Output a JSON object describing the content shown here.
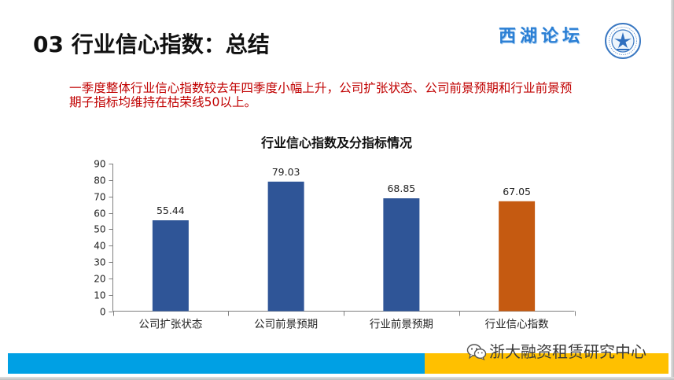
{
  "slide": {
    "title": "03 行业信心指数：总结",
    "logo_text": "西湖论坛",
    "summary": "一季度整体行业信心指数较去年四季度小幅上升，公司扩张状态、公司前景预期和行业前景预期子指标均维持在枯荣线50以上。",
    "watermark": "浙大融资租赁研究中心"
  },
  "icons": {
    "emblem": "emblem-logo-icon",
    "watermark": "wechat-icon"
  },
  "colors": {
    "title": "#111111",
    "logo": "#2b7fd4",
    "summary": "#c00000",
    "band_blue": "#00a0e4",
    "band_yellow": "#ffc000",
    "axis": "#7f7f7f"
  },
  "chart_data": {
    "type": "bar",
    "title": "行业信心指数及分指标情况",
    "categories": [
      "公司扩张状态",
      "公司前景预期",
      "行业前景预期",
      "行业信心指数"
    ],
    "values": [
      55.44,
      79.03,
      68.85,
      67.05
    ],
    "bar_colors": [
      "#2f5597",
      "#2f5597",
      "#2f5597",
      "#c55a11"
    ],
    "xlabel": "",
    "ylabel": "",
    "ylim": [
      0,
      90
    ],
    "yticks": [
      0,
      10,
      20,
      30,
      40,
      50,
      60,
      70,
      80,
      90
    ],
    "grid": false,
    "legend": "none",
    "data_labels": true
  }
}
